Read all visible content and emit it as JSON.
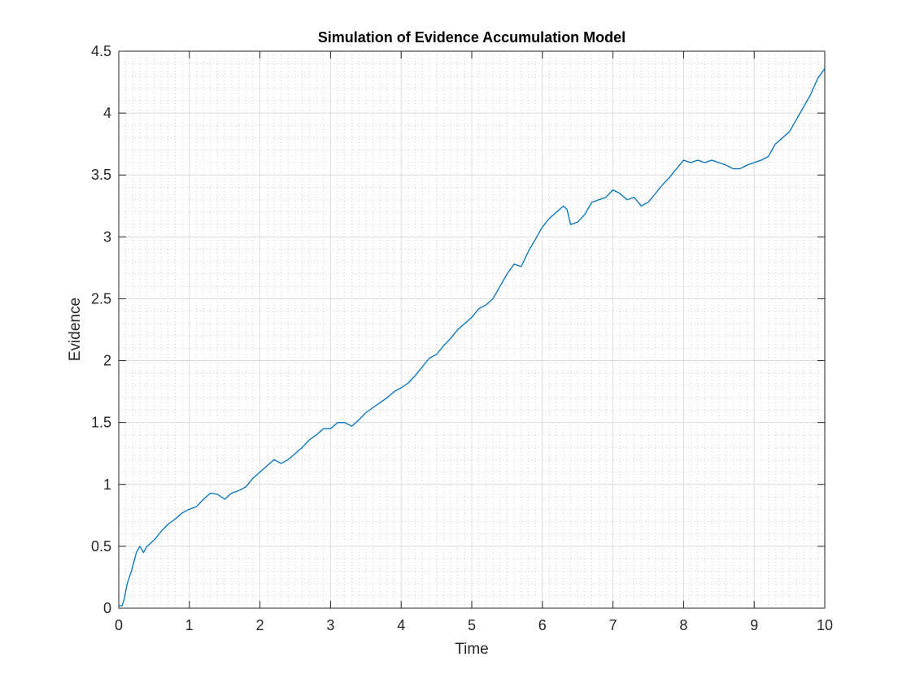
{
  "chart_data": {
    "type": "line",
    "title": "Simulation of Evidence Accumulation Model",
    "xlabel": "Time",
    "ylabel": "Evidence",
    "xlim": [
      0,
      10
    ],
    "ylim": [
      0,
      4.5
    ],
    "xticks": [
      0,
      1,
      2,
      3,
      4,
      5,
      6,
      7,
      8,
      9,
      10
    ],
    "yticks": [
      0,
      0.5,
      1,
      1.5,
      2,
      2.5,
      3,
      3.5,
      4,
      4.5
    ],
    "xtick_labels": [
      "0",
      "1",
      "2",
      "3",
      "4",
      "5",
      "6",
      "7",
      "8",
      "9",
      "10"
    ],
    "ytick_labels": [
      "0",
      "0.5",
      "1",
      "1.5",
      "2",
      "2.5",
      "3",
      "3.5",
      "4",
      "4.5"
    ],
    "grid": true,
    "minor_grid": true,
    "line_color": "#0072BD",
    "series": [
      {
        "x": [
          0,
          0.05,
          0.08,
          0.12,
          0.18,
          0.25,
          0.3,
          0.35,
          0.4,
          0.5,
          0.6,
          0.7,
          0.8,
          0.9,
          1.0,
          1.1,
          1.2,
          1.3,
          1.4,
          1.5,
          1.6,
          1.7,
          1.8,
          1.9,
          2.0,
          2.1,
          2.2,
          2.3,
          2.4,
          2.5,
          2.6,
          2.7,
          2.8,
          2.9,
          3.0,
          3.1,
          3.2,
          3.3,
          3.4,
          3.5,
          3.6,
          3.7,
          3.8,
          3.9,
          4.0,
          4.1,
          4.2,
          4.3,
          4.4,
          4.5,
          4.6,
          4.7,
          4.8,
          4.9,
          5.0,
          5.1,
          5.2,
          5.3,
          5.4,
          5.5,
          5.6,
          5.7,
          5.8,
          5.9,
          6.0,
          6.1,
          6.2,
          6.3,
          6.35,
          6.4,
          6.5,
          6.6,
          6.7,
          6.8,
          6.9,
          7.0,
          7.1,
          7.2,
          7.3,
          7.4,
          7.5,
          7.6,
          7.7,
          7.8,
          7.9,
          8.0,
          8.1,
          8.2,
          8.3,
          8.4,
          8.5,
          8.6,
          8.7,
          8.8,
          8.9,
          9.0,
          9.1,
          9.2,
          9.3,
          9.4,
          9.5,
          9.6,
          9.7,
          9.8,
          9.9,
          10.0
        ],
        "y": [
          0.02,
          0.02,
          0.08,
          0.2,
          0.3,
          0.45,
          0.5,
          0.45,
          0.5,
          0.55,
          0.62,
          0.68,
          0.72,
          0.77,
          0.8,
          0.82,
          0.88,
          0.93,
          0.92,
          0.88,
          0.93,
          0.95,
          0.98,
          1.05,
          1.1,
          1.15,
          1.2,
          1.17,
          1.2,
          1.25,
          1.3,
          1.36,
          1.4,
          1.45,
          1.45,
          1.5,
          1.5,
          1.47,
          1.52,
          1.58,
          1.62,
          1.66,
          1.7,
          1.75,
          1.78,
          1.82,
          1.88,
          1.95,
          2.02,
          2.05,
          2.12,
          2.18,
          2.25,
          2.3,
          2.35,
          2.42,
          2.45,
          2.5,
          2.6,
          2.7,
          2.78,
          2.76,
          2.88,
          2.98,
          3.08,
          3.15,
          3.2,
          3.25,
          3.22,
          3.1,
          3.12,
          3.18,
          3.28,
          3.3,
          3.32,
          3.38,
          3.35,
          3.3,
          3.32,
          3.25,
          3.28,
          3.35,
          3.42,
          3.48,
          3.55,
          3.62,
          3.6,
          3.62,
          3.6,
          3.62,
          3.6,
          3.58,
          3.55,
          3.55,
          3.58,
          3.6,
          3.62,
          3.65,
          3.75,
          3.8,
          3.85,
          3.95,
          4.05,
          4.15,
          4.28,
          4.36
        ]
      }
    ]
  }
}
